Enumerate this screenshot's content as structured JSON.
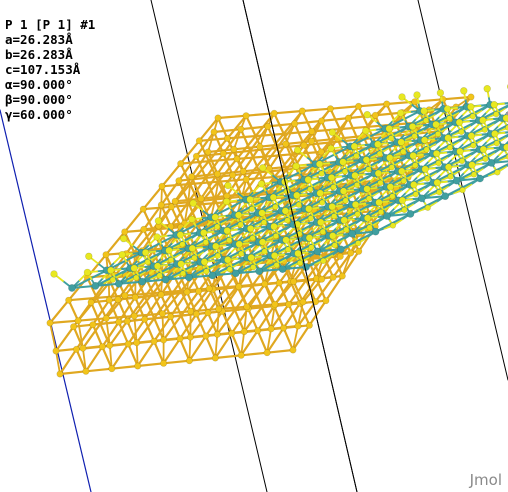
{
  "viewer": {
    "app_name": "Jmol"
  },
  "cell_info": {
    "space_group": "P 1 [P 1] #1",
    "a": "a=26.283Å",
    "b": "b=26.283Å",
    "c": "c=107.153Å",
    "alpha": "α=90.000°",
    "beta": "β=90.000°",
    "gamma": "γ=60.000°"
  },
  "colors": {
    "background": "#ffffff",
    "gold_atom": "#f2c41a",
    "gold_bond": "#e0a820",
    "sulfur_atom": "#e8e820",
    "tungsten_atom": "#3f9fa0",
    "tungsten_bond": "#3f9fa0",
    "cell_edge": "#000000",
    "axis_b": "#1020b0"
  }
}
